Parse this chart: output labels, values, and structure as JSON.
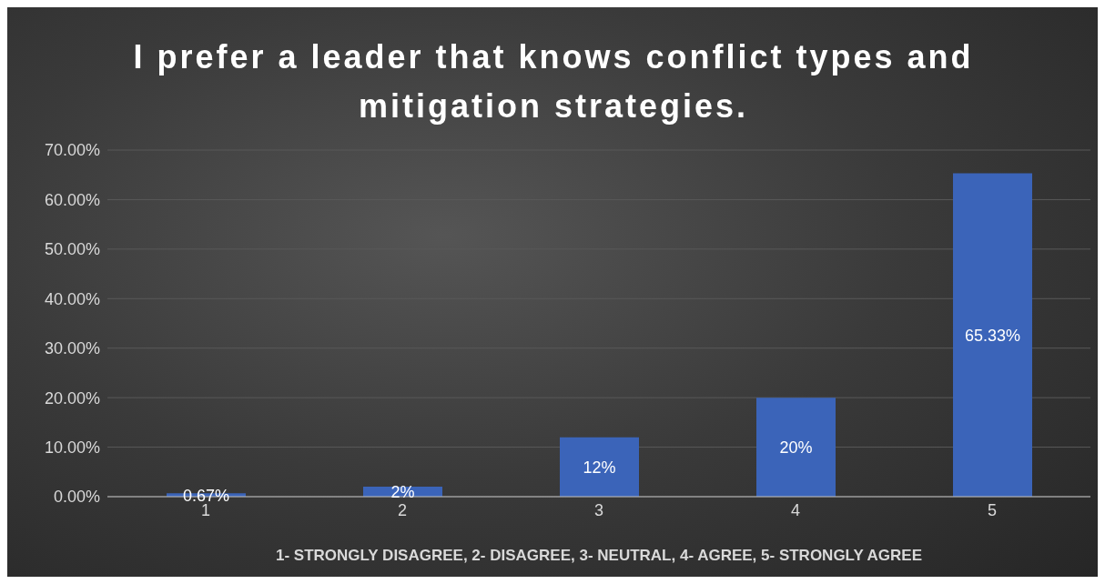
{
  "chart_data": {
    "type": "bar",
    "title": "I prefer a leader that knows conflict types and mitigation strategies.",
    "xlabel": "1- STRONGLY DISAGREE, 2- DISAGREE, 3- NEUTRAL, 4- AGREE, 5- STRONGLY AGREE",
    "categories": [
      "1",
      "2",
      "3",
      "4",
      "5"
    ],
    "values": [
      0.67,
      2,
      12,
      20,
      65.33
    ],
    "value_labels": [
      "0.67%",
      "2%",
      "12%",
      "20%",
      "65.33%"
    ],
    "color": "#3b64b9",
    "ylim": [
      0,
      70
    ],
    "yticks": [
      {
        "value": 0,
        "label": "0.00%"
      },
      {
        "value": 10,
        "label": "10.00%"
      },
      {
        "value": 20,
        "label": "20.00%"
      },
      {
        "value": 30,
        "label": "30.00%"
      },
      {
        "value": 40,
        "label": "40.00%"
      },
      {
        "value": 50,
        "label": "50.00%"
      },
      {
        "value": 60,
        "label": "60.00%"
      },
      {
        "value": 70,
        "label": "70.00%"
      }
    ],
    "grid": "y",
    "legend": false
  }
}
